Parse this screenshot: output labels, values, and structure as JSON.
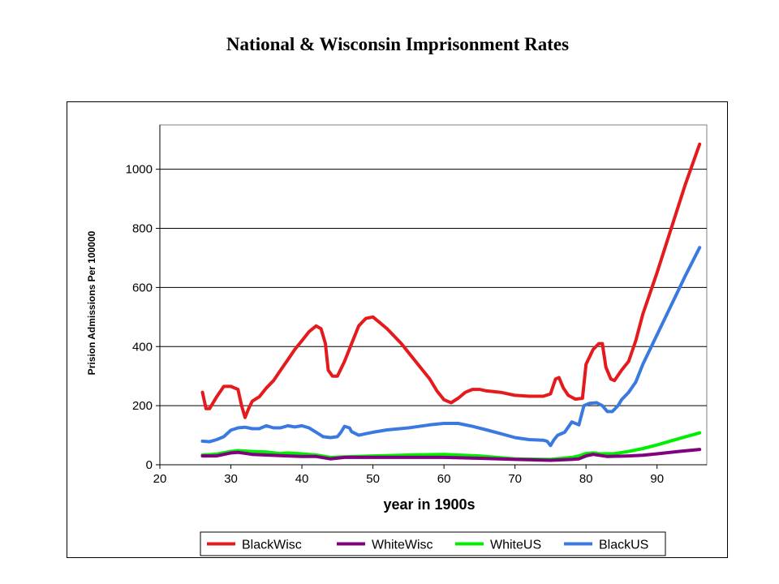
{
  "slide": {
    "title": "National & Wisconsin Imprisonment Rates"
  },
  "chart_data": {
    "type": "line",
    "title": "National & Wisconsin Imprisonment Rates",
    "xlabel": "year in 1900s",
    "ylabel": "Prision Admissions Per 100000",
    "xlim": [
      20,
      97
    ],
    "ylim": [
      0,
      1150
    ],
    "xticks": [
      20,
      30,
      40,
      50,
      60,
      70,
      80,
      90
    ],
    "yticks": [
      0,
      200,
      400,
      600,
      800,
      1000
    ],
    "grid": "horizontal",
    "legend": "bottom",
    "series": [
      {
        "name": "BlackWisc",
        "color": "#e41a1c",
        "points": [
          [
            26,
            245
          ],
          [
            26.5,
            190
          ],
          [
            27,
            190
          ],
          [
            28,
            230
          ],
          [
            29,
            265
          ],
          [
            30,
            265
          ],
          [
            31,
            255
          ],
          [
            31.5,
            200
          ],
          [
            32,
            160
          ],
          [
            32.5,
            190
          ],
          [
            33,
            215
          ],
          [
            34,
            230
          ],
          [
            35,
            260
          ],
          [
            36,
            285
          ],
          [
            37,
            320
          ],
          [
            38,
            355
          ],
          [
            39,
            390
          ],
          [
            40,
            420
          ],
          [
            41,
            450
          ],
          [
            42,
            470
          ],
          [
            42.7,
            460
          ],
          [
            43.3,
            410
          ],
          [
            43.7,
            320
          ],
          [
            44.3,
            300
          ],
          [
            45,
            300
          ],
          [
            46,
            350
          ],
          [
            47,
            410
          ],
          [
            48,
            470
          ],
          [
            49,
            495
          ],
          [
            50,
            500
          ],
          [
            51,
            480
          ],
          [
            52,
            460
          ],
          [
            54,
            410
          ],
          [
            56,
            350
          ],
          [
            58,
            290
          ],
          [
            59,
            250
          ],
          [
            60,
            220
          ],
          [
            61,
            210
          ],
          [
            62,
            225
          ],
          [
            63,
            245
          ],
          [
            64,
            255
          ],
          [
            65,
            255
          ],
          [
            66,
            250
          ],
          [
            68,
            245
          ],
          [
            70,
            235
          ],
          [
            72,
            232
          ],
          [
            74,
            232
          ],
          [
            75,
            240
          ],
          [
            75.7,
            290
          ],
          [
            76.2,
            295
          ],
          [
            76.8,
            260
          ],
          [
            77.5,
            235
          ],
          [
            78.5,
            222
          ],
          [
            79.5,
            225
          ],
          [
            80,
            340
          ],
          [
            81,
            390
          ],
          [
            81.8,
            410
          ],
          [
            82.3,
            410
          ],
          [
            82.8,
            330
          ],
          [
            83.5,
            290
          ],
          [
            84,
            285
          ],
          [
            85,
            320
          ],
          [
            86,
            350
          ],
          [
            87,
            420
          ],
          [
            88,
            510
          ],
          [
            90,
            650
          ],
          [
            92,
            800
          ],
          [
            94,
            950
          ],
          [
            96,
            1085
          ]
        ]
      },
      {
        "name": "WhiteWisc",
        "color": "#800080",
        "points": [
          [
            26,
            30
          ],
          [
            28,
            30
          ],
          [
            30,
            40
          ],
          [
            31,
            42
          ],
          [
            33,
            35
          ],
          [
            35,
            33
          ],
          [
            38,
            30
          ],
          [
            40,
            28
          ],
          [
            42,
            28
          ],
          [
            44,
            20
          ],
          [
            46,
            25
          ],
          [
            50,
            25
          ],
          [
            55,
            25
          ],
          [
            60,
            25
          ],
          [
            65,
            22
          ],
          [
            70,
            18
          ],
          [
            75,
            15
          ],
          [
            78,
            18
          ],
          [
            79,
            20
          ],
          [
            80,
            30
          ],
          [
            81,
            35
          ],
          [
            83,
            28
          ],
          [
            86,
            30
          ],
          [
            88,
            32
          ],
          [
            90,
            37
          ],
          [
            93,
            45
          ],
          [
            96,
            52
          ]
        ]
      },
      {
        "name": "WhiteUS",
        "color": "#00ee00",
        "points": [
          [
            26,
            33
          ],
          [
            28,
            36
          ],
          [
            30,
            45
          ],
          [
            31,
            48
          ],
          [
            33,
            45
          ],
          [
            35,
            43
          ],
          [
            37,
            38
          ],
          [
            38,
            40
          ],
          [
            40,
            37
          ],
          [
            42,
            33
          ],
          [
            44,
            25
          ],
          [
            46,
            27
          ],
          [
            50,
            30
          ],
          [
            55,
            33
          ],
          [
            60,
            35
          ],
          [
            65,
            30
          ],
          [
            70,
            20
          ],
          [
            75,
            18
          ],
          [
            78,
            25
          ],
          [
            79,
            30
          ],
          [
            80,
            38
          ],
          [
            81,
            40
          ],
          [
            82,
            37
          ],
          [
            84,
            38
          ],
          [
            86,
            45
          ],
          [
            88,
            55
          ],
          [
            90,
            67
          ],
          [
            93,
            88
          ],
          [
            96,
            108
          ]
        ]
      },
      {
        "name": "BlackUS",
        "color": "#3a7ae0",
        "points": [
          [
            26,
            80
          ],
          [
            27,
            78
          ],
          [
            28,
            85
          ],
          [
            29,
            95
          ],
          [
            30,
            117
          ],
          [
            31,
            125
          ],
          [
            32,
            127
          ],
          [
            33,
            122
          ],
          [
            34,
            122
          ],
          [
            35,
            132
          ],
          [
            36,
            125
          ],
          [
            37,
            125
          ],
          [
            38,
            132
          ],
          [
            39,
            128
          ],
          [
            40,
            132
          ],
          [
            41,
            125
          ],
          [
            42,
            110
          ],
          [
            43,
            95
          ],
          [
            44,
            92
          ],
          [
            45,
            95
          ],
          [
            45.5,
            110
          ],
          [
            46,
            130
          ],
          [
            46.7,
            125
          ],
          [
            47,
            112
          ],
          [
            48,
            100
          ],
          [
            49,
            105
          ],
          [
            50,
            110
          ],
          [
            52,
            118
          ],
          [
            55,
            125
          ],
          [
            58,
            135
          ],
          [
            60,
            140
          ],
          [
            62,
            140
          ],
          [
            64,
            130
          ],
          [
            66,
            118
          ],
          [
            68,
            105
          ],
          [
            70,
            92
          ],
          [
            72,
            85
          ],
          [
            74,
            83
          ],
          [
            74.5,
            80
          ],
          [
            75,
            65
          ],
          [
            75.5,
            85
          ],
          [
            76,
            100
          ],
          [
            77,
            110
          ],
          [
            78,
            145
          ],
          [
            78.5,
            140
          ],
          [
            79,
            135
          ],
          [
            79.7,
            200
          ],
          [
            80.5,
            208
          ],
          [
            81.5,
            210
          ],
          [
            82.3,
            200
          ],
          [
            83,
            180
          ],
          [
            83.7,
            180
          ],
          [
            84.5,
            200
          ],
          [
            85,
            220
          ],
          [
            86,
            245
          ],
          [
            87,
            280
          ],
          [
            88,
            340
          ],
          [
            90,
            440
          ],
          [
            92,
            540
          ],
          [
            94,
            640
          ],
          [
            96,
            735
          ]
        ]
      }
    ]
  }
}
